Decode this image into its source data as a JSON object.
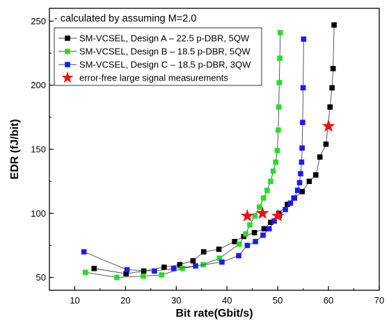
{
  "chart_data": {
    "type": "scatter",
    "title": "",
    "xlabel": "Bit rate(Gbit/s)",
    "ylabel": "EDR (fJ/bit)",
    "xlim": [
      5,
      70
    ],
    "ylim": [
      40,
      260
    ],
    "x_ticks": [
      10,
      20,
      30,
      40,
      50,
      60,
      70
    ],
    "y_ticks": [
      50,
      100,
      150,
      200,
      250
    ],
    "grid": false,
    "legend_position": "top-left",
    "annotations": [
      "- calculated by assuming M=2.0"
    ],
    "series": [
      {
        "name": "SM-VCSEL, Design A – 22.5 p-DBR, 5QW",
        "color": "#000000",
        "marker": "square",
        "x": [
          13.8,
          20.1,
          23.6,
          27.6,
          30.7,
          33.3,
          35.4,
          38.4,
          41.5,
          43.3,
          45.4,
          47.3,
          48.6,
          50.2,
          51.9,
          53.2,
          54.8,
          56.2,
          57.5,
          58.3,
          59.5,
          60.3,
          60.7,
          60.9,
          61.1
        ],
        "y": [
          57,
          53,
          55,
          58,
          60,
          63,
          70,
          72,
          78,
          82,
          85,
          88,
          93,
          100,
          107,
          112,
          117,
          125,
          130,
          144,
          154,
          183,
          198,
          213,
          247
        ]
      },
      {
        "name": "SM-VCSEL, Design B – 18.5 p-DBR, 5QW",
        "color": "#22e022",
        "marker": "square",
        "x": [
          12.1,
          18.3,
          23.5,
          27.1,
          31.2,
          35.3,
          38.5,
          42.4,
          43.7,
          44.5,
          45.5,
          46.4,
          47.2,
          47.9,
          48.6,
          49.1,
          49.6,
          49.9,
          50.1,
          50.2,
          50.3,
          50.4,
          50.5
        ],
        "y": [
          54,
          50,
          51,
          52,
          57,
          60,
          65,
          76,
          84,
          91,
          98,
          105,
          112,
          118,
          125,
          133,
          140,
          149,
          165,
          183,
          202,
          221,
          241
        ]
      },
      {
        "name": "SM-VCSEL, Design C – 18.5 p-DBR, 3QW",
        "color": "#1a1aff",
        "marker": "square",
        "x": [
          11.8,
          20.3,
          25.7,
          29.5,
          33.8,
          39.0,
          42.3,
          44.0,
          45.6,
          47.1,
          48.3,
          49.3,
          50.3,
          51.5,
          52.5,
          53.3,
          53.9,
          54.3,
          54.5,
          54.7,
          54.8,
          54.9,
          55.0,
          55.1
        ],
        "y": [
          70,
          56,
          55,
          57,
          59,
          62,
          67,
          75,
          78,
          83,
          88,
          94,
          98,
          103,
          108,
          112,
          118,
          124,
          131,
          140,
          151,
          171,
          198,
          236
        ]
      },
      {
        "name": "error-free large signal measurements",
        "color": "#ee1111",
        "marker": "star",
        "x": [
          44.0,
          47.0,
          50.0,
          60.0
        ],
        "y": [
          98,
          100,
          98,
          168
        ]
      }
    ]
  }
}
